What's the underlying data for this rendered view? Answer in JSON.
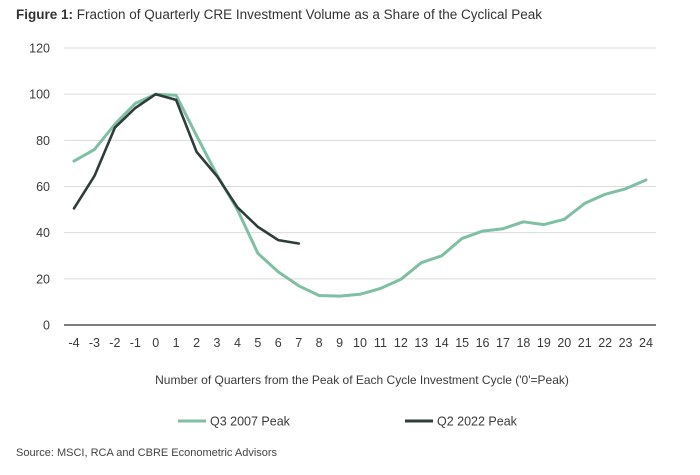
{
  "figure": {
    "label": "Figure 1:",
    "title": "Fraction of Quarterly CRE Investment Volume as a Share of the Cyclical Peak",
    "source": "Source: MSCI, RCA and CBRE Econometric Advisors"
  },
  "colors": {
    "series1": "#7fbfa4",
    "series2": "#2f3d3a",
    "grid": "#dcdcdc",
    "axis": "#333333"
  },
  "chart_data": {
    "type": "line",
    "title": "Fraction of Quarterly CRE Investment Volume as a Share of the Cyclical Peak",
    "xlabel": "Number of Quarters from the Peak of Each Cycle Investment Cycle ('0'=Peak)",
    "ylabel": "",
    "x": [
      -4,
      -3,
      -2,
      -1,
      0,
      1,
      2,
      3,
      4,
      5,
      6,
      7,
      8,
      9,
      10,
      11,
      12,
      13,
      14,
      15,
      16,
      17,
      18,
      19,
      20,
      21,
      22,
      23,
      24
    ],
    "xlim": [
      -4,
      24
    ],
    "ylim": [
      0,
      120
    ],
    "yticks": [
      0,
      20,
      40,
      60,
      80,
      100,
      120
    ],
    "grid": true,
    "legend_position": "bottom",
    "series": [
      {
        "name": "Q3 2007 Peak",
        "x": [
          -4,
          -3,
          -2,
          -1,
          0,
          1,
          2,
          3,
          4,
          5,
          6,
          7,
          8,
          9,
          10,
          11,
          12,
          13,
          14,
          15,
          16,
          17,
          18,
          19,
          20,
          21,
          22,
          23,
          24
        ],
        "values": [
          71,
          76,
          87,
          96,
          100,
          99.5,
          82,
          65,
          50,
          31,
          23,
          17,
          12.8,
          12.5,
          13.3,
          15.8,
          19.8,
          27,
          30,
          37.5,
          40.7,
          41.7,
          44.7,
          43.5,
          45.8,
          52.7,
          56.6,
          59,
          62.8
        ]
      },
      {
        "name": "Q2 2022 Peak",
        "x": [
          -4,
          -3,
          -2,
          -1,
          0,
          1,
          2,
          3,
          4,
          5,
          6,
          7
        ],
        "values": [
          50.5,
          64.5,
          85.5,
          94,
          100,
          97.5,
          75,
          64.5,
          51,
          42.5,
          36.8,
          35.3
        ]
      }
    ]
  }
}
